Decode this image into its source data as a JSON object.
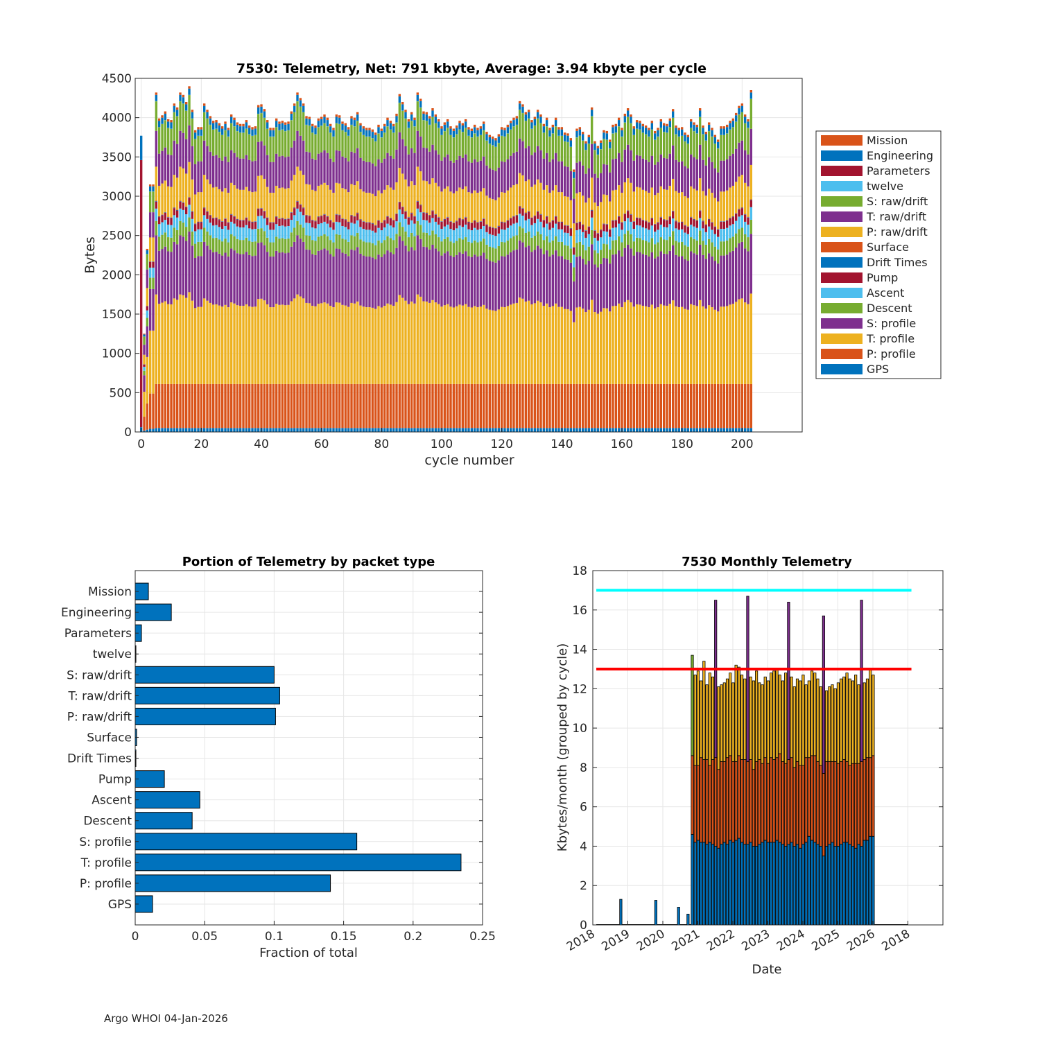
{
  "footer": "Argo WHOI 04-Jan-2026",
  "colors": {
    "Mission": "#D95319",
    "Engineering": "#0072BD",
    "Parameters": "#A2142F",
    "twelve": "#4DBEEE",
    "S: raw/drift": "#77AC30",
    "T: raw/drift": "#7E2F8E",
    "P: raw/drift": "#EDB120",
    "Surface": "#D95319",
    "Drift Times": "#0072BD",
    "Pump": "#A2142F",
    "Ascent": "#4DBEEE",
    "Descent": "#77AC30",
    "S: profile": "#7E2F8E",
    "T: profile": "#EDB120",
    "P: profile": "#D95319",
    "GPS": "#0072BD",
    "barh": "#0072BD",
    "line_high": "#00FFFF",
    "line_mid": "#FF0000"
  },
  "chart_data": [
    {
      "id": "cycle",
      "type": "bar",
      "stacked": true,
      "title": "7530: Telemetry, Net:    791 kbyte,  Average: 3.94 kbyte per cycle",
      "xlabel": "cycle number",
      "ylabel": "Bytes",
      "xlim": [
        -2,
        220
      ],
      "ylim": [
        0,
        4500
      ],
      "xticks": [
        0,
        20,
        40,
        60,
        80,
        100,
        120,
        140,
        160,
        180,
        200
      ],
      "yticks": [
        0,
        500,
        1000,
        1500,
        2000,
        2500,
        3000,
        3500,
        4000,
        4500
      ],
      "legend_position": "outside-right",
      "legend": [
        "Mission",
        "Engineering",
        "Parameters",
        "twelve",
        "S: raw/drift",
        "T: raw/drift",
        "P: raw/drift",
        "Surface",
        "Drift Times",
        "Pump",
        "Ascent",
        "Descent",
        "S: profile",
        "T: profile",
        "P: profile",
        "GPS"
      ],
      "stack_order": [
        "GPS",
        "P: profile",
        "T: profile",
        "S: profile",
        "Descent",
        "Ascent",
        "Pump",
        "Drift Times",
        "Surface",
        "P: raw/drift",
        "T: raw/drift",
        "S: raw/drift",
        "twelve",
        "Parameters",
        "Engineering",
        "Mission"
      ],
      "cycles": "0-200",
      "typical_cycle": {
        "GPS": 50,
        "P: profile": 560,
        "T: profile": 1000,
        "S: profile": 660,
        "Descent": 180,
        "Ascent": 160,
        "Pump": 90,
        "Drift Times": 5,
        "Surface": 5,
        "P: raw/drift": 380,
        "T: raw/drift": 400,
        "S: raw/drift": 330,
        "twelve": 2,
        "Parameters": 0,
        "Engineering": 80,
        "Mission": 30
      },
      "totals": [
        3770,
        1250,
        2330,
        3150,
        3150,
        4320,
        3990,
        4030,
        4080,
        3980,
        3970,
        4180,
        4130,
        4320,
        4290,
        4200,
        4400,
        4100,
        3840,
        3880,
        3880,
        4180,
        4100,
        4020,
        3960,
        3970,
        3930,
        3890,
        3950,
        3870,
        4040,
        4000,
        3940,
        3920,
        3920,
        3970,
        3900,
        3880,
        3890,
        4160,
        4170,
        4110,
        3970,
        3870,
        3870,
        3990,
        3950,
        3960,
        3940,
        3950,
        4080,
        4180,
        4320,
        4250,
        4180,
        4020,
        4010,
        3920,
        3900,
        3990,
        4010,
        4040,
        4000,
        3920,
        3870,
        4040,
        4030,
        3950,
        3930,
        3880,
        4020,
        4000,
        4070,
        3930,
        3890,
        3870,
        3870,
        3850,
        3810,
        3910,
        3860,
        3920,
        4000,
        3960,
        3920,
        4050,
        4300,
        4200,
        4100,
        3980,
        4070,
        4000,
        4320,
        4240,
        4080,
        4070,
        4020,
        4120,
        4040,
        3980,
        3890,
        3940,
        3980,
        3890,
        3860,
        3900,
        3960,
        3930,
        3980,
        3880,
        3860,
        3910,
        3870,
        3890,
        3950,
        3820,
        3780,
        3760,
        3740,
        3790,
        3880,
        3870,
        3910,
        3960,
        4000,
        4020,
        4210,
        4170,
        4070,
        4100,
        3970,
        4010,
        4100,
        4040,
        3920,
        4000,
        3870,
        3910,
        4000,
        3880,
        3880,
        3810,
        3800,
        3740,
        3340,
        3860,
        3880,
        3820,
        3700,
        3780,
        4130,
        3700,
        3640,
        3710,
        3840,
        3830,
        3720,
        3910,
        3920,
        4000,
        3870,
        4050,
        4120,
        4040,
        3890,
        3970,
        3960,
        3920,
        3900,
        3870,
        3960,
        3830,
        3870,
        3980,
        3930,
        3920,
        3990,
        4110,
        3900,
        3870,
        3880,
        3810,
        3780,
        3980,
        3940,
        3910,
        4120,
        3900,
        3820,
        3940,
        3870,
        3780,
        3720,
        3890,
        3890,
        3910,
        3960,
        3990,
        4060,
        4150,
        4180,
        4040,
        3980,
        4350
      ]
    },
    {
      "id": "packets",
      "type": "bar",
      "orientation": "horizontal",
      "title": "Portion of Telemetry by packet type",
      "xlabel": "Fraction of total",
      "ylabel": "",
      "xlim": [
        0,
        0.25
      ],
      "xticks": [
        0,
        0.05,
        0.1,
        0.15,
        0.2,
        0.25
      ],
      "categories": [
        "Mission",
        "Engineering",
        "Parameters",
        "twelve",
        "S: raw/drift",
        "T: raw/drift",
        "P: raw/drift",
        "Surface",
        "Drift Times",
        "Pump",
        "Ascent",
        "Descent",
        "S: profile",
        "T: profile",
        "P: profile",
        "GPS"
      ],
      "values": [
        0.0095,
        0.026,
        0.0045,
        0.0005,
        0.1,
        0.104,
        0.101,
        0.001,
        0.0005,
        0.021,
        0.0465,
        0.041,
        0.1595,
        0.2345,
        0.1405,
        0.0125
      ]
    },
    {
      "id": "monthly",
      "type": "bar",
      "stacked": true,
      "title": "7530 Monthly Telemetry",
      "xlabel": "Date",
      "ylabel": "Kbytes/month (grouped by cycle)",
      "ylim": [
        0,
        18
      ],
      "yticks": [
        0,
        2,
        4,
        6,
        8,
        10,
        12,
        14,
        16,
        18
      ],
      "xlim": [
        2018.0,
        2028.0
      ],
      "xtick_labels": [
        "2018",
        "2019",
        "2020",
        "2021",
        "2022",
        "2023",
        "2024",
        "2025",
        "2026",
        "2018"
      ],
      "reference_lines": [
        {
          "y": 17,
          "color": "line_high"
        },
        {
          "y": 13,
          "color": "line_mid"
        }
      ],
      "early_bars": [
        {
          "t": 2018.8,
          "v": 1.3
        },
        {
          "t": 2019.8,
          "v": 1.25
        },
        {
          "t": 2020.45,
          "v": 0.9
        },
        {
          "t": 2020.72,
          "v": 0.55
        }
      ],
      "monthly_start": 2020.8,
      "monthly_totals": [
        13.7,
        12.7,
        12.9,
        12.4,
        13.4,
        12.2,
        12.8,
        12.6,
        16.5,
        12.1,
        12.2,
        12.3,
        12.5,
        12.8,
        12.3,
        13.2,
        13.1,
        12.7,
        12.5,
        16.7,
        12.6,
        12.4,
        12.9,
        12.3,
        12.2,
        12.6,
        12.4,
        12.8,
        12.9,
        13.0,
        12.7,
        12.4,
        12.8,
        16.4,
        12.6,
        12.1,
        12.5,
        12.4,
        12.7,
        12.2,
        12.4,
        12.9,
        12.8,
        12.5,
        12.1,
        15.7,
        11.9,
        12.1,
        12.2,
        12.0,
        12.3,
        12.5,
        12.6,
        12.8,
        12.5,
        12.4,
        12.7,
        12.2,
        16.5,
        12.3,
        12.5,
        13.0,
        12.7
      ],
      "monthly_bottom": [
        4.6,
        4.2,
        4.3,
        4.2,
        4.2,
        4.1,
        4.2,
        4.1,
        4.0,
        3.9,
        4.1,
        4.2,
        4.1,
        4.3,
        4.2,
        4.3,
        4.4,
        4.2,
        4.1,
        4.1,
        4.2,
        4.0,
        4.0,
        4.1,
        4.2,
        4.3,
        4.2,
        4.2,
        4.2,
        4.3,
        4.2,
        4.1,
        4.0,
        4.1,
        4.2,
        4.0,
        4.1,
        3.9,
        4.1,
        4.2,
        4.5,
        4.3,
        4.2,
        4.1,
        4.0,
        3.5,
        4.0,
        4.1,
        4.2,
        4.0,
        4.0,
        4.1,
        4.2,
        4.2,
        4.1,
        4.0,
        3.9,
        4.1,
        4.0,
        4.3,
        4.3,
        4.5,
        4.5
      ],
      "monthly_middle": [
        4.0,
        3.9,
        3.8,
        4.3,
        4.2,
        4.3,
        3.9,
        4.3,
        4.5,
        4.0,
        4.2,
        4.1,
        4.4,
        4.3,
        4.1,
        4.0,
        4.2,
        4.2,
        4.3,
        4.2,
        4.2,
        3.9,
        4.3,
        4.3,
        4.0,
        4.2,
        4.0,
        4.3,
        4.2,
        4.2,
        4.5,
        4.2,
        4.2,
        4.3,
        4.3,
        4.0,
        4.2,
        4.2,
        4.0,
        4.3,
        4.0,
        4.3,
        4.4,
        4.2,
        4.1,
        4.2,
        4.3,
        4.2,
        4.1,
        4.3,
        4.2,
        4.2,
        4.2,
        4.1,
        4.0,
        4.2,
        4.3,
        4.1,
        4.3,
        4.1,
        4.2,
        4.0,
        4.1
      ],
      "stack_colors": [
        "#0072BD",
        "#D95319",
        "#EDB120",
        "#7E2F8E",
        "#77AC30"
      ]
    }
  ]
}
